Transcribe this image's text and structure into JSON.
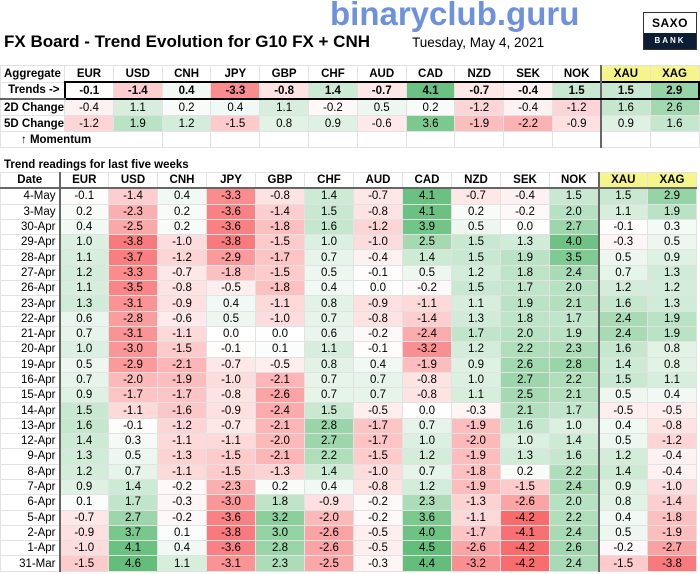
{
  "header": {
    "title": "FX Board - Trend Evolution for G10 FX + CNH",
    "date": "Tuesday, May 4, 2021",
    "logo_top": "SAXO",
    "logo_bottom": "BANK"
  },
  "colors": {
    "negative_max": "#f8696b",
    "positive_max": "#63be7b",
    "neutral": "#ffffff",
    "metals_header": "#f6f58a"
  },
  "currencies": [
    "EUR",
    "USD",
    "CNH",
    "JPY",
    "GBP",
    "CHF",
    "AUD",
    "CAD",
    "NZD",
    "SEK",
    "NOK",
    "XAU",
    "XAG"
  ],
  "aggregate": {
    "header_label": "Aggregate",
    "rows": [
      {
        "label": "Trends ->",
        "values": [
          "-0.1",
          "-1.4",
          "0.4",
          "-3.3",
          "-0.8",
          "1.4",
          "-0.7",
          "4.1",
          "-0.7",
          "-0.4",
          "1.5",
          "1.5",
          "2.9"
        ]
      },
      {
        "label": "2D Change",
        "values": [
          "-0.4",
          "1.1",
          "0.2",
          "0.4",
          "1.1",
          "-0.2",
          "0.5",
          "0.2",
          "-1.2",
          "-0.4",
          "-1.2",
          "1.6",
          "2.6"
        ]
      },
      {
        "label": "5D Change",
        "values": [
          "-1.2",
          "1.9",
          "1.2",
          "-1.5",
          "0.8",
          "0.9",
          "-0.6",
          "3.6",
          "-1.9",
          "-2.2",
          "-0.9",
          "0.9",
          "1.6"
        ]
      }
    ],
    "momentum_label": "↑ Momentum"
  },
  "history": {
    "section_title": "Trend readings for last five weeks",
    "date_header": "Date",
    "rows": [
      {
        "date": "4-May",
        "values": [
          "-0.1",
          "-1.4",
          "0.4",
          "-3.3",
          "-0.8",
          "1.4",
          "-0.7",
          "4.1",
          "-0.7",
          "-0.4",
          "1.5",
          "1.5",
          "2.9"
        ]
      },
      {
        "date": "3-May",
        "values": [
          "0.2",
          "-2.3",
          "0.2",
          "-3.6",
          "-1.4",
          "1.5",
          "-0.8",
          "4.1",
          "0.2",
          "-0.2",
          "2.0",
          "1.1",
          "1.9"
        ]
      },
      {
        "date": "30-Apr",
        "values": [
          "0.4",
          "-2.5",
          "0.2",
          "-3.6",
          "-1.8",
          "1.6",
          "-1.2",
          "3.9",
          "0.5",
          "0.0",
          "2.7",
          "-0.1",
          "0.3"
        ]
      },
      {
        "date": "29-Apr",
        "values": [
          "1.0",
          "-3.8",
          "-1.0",
          "-3.8",
          "-1.5",
          "1.0",
          "-1.0",
          "2.5",
          "1.5",
          "1.3",
          "4.0",
          "-0.3",
          "0.5"
        ]
      },
      {
        "date": "28-Apr",
        "values": [
          "1.1",
          "-3.7",
          "-1.2",
          "-2.9",
          "-1.7",
          "0.7",
          "-0.4",
          "1.4",
          "1.5",
          "1.9",
          "3.5",
          "0.5",
          "0.9"
        ]
      },
      {
        "date": "27-Apr",
        "values": [
          "1.2",
          "-3.3",
          "-0.7",
          "-1.8",
          "-1.5",
          "0.5",
          "-0.1",
          "0.5",
          "1.2",
          "1.8",
          "2.4",
          "0.7",
          "1.3"
        ]
      },
      {
        "date": "26-Apr",
        "values": [
          "1.1",
          "-3.5",
          "-0.8",
          "-0.5",
          "-1.8",
          "0.4",
          "0.0",
          "-0.2",
          "1.5",
          "1.7",
          "2.0",
          "1.2",
          "1.2"
        ]
      },
      {
        "date": "23-Apr",
        "values": [
          "1.3",
          "-3.1",
          "-0.9",
          "0.4",
          "-1.1",
          "0.8",
          "-0.9",
          "-1.1",
          "1.1",
          "1.9",
          "2.1",
          "1.6",
          "1.3"
        ]
      },
      {
        "date": "22-Apr",
        "values": [
          "0.6",
          "-2.8",
          "-0.6",
          "0.5",
          "-1.0",
          "0.7",
          "-0.8",
          "-1.4",
          "1.3",
          "1.8",
          "1.7",
          "2.4",
          "1.9"
        ]
      },
      {
        "date": "21-Apr",
        "values": [
          "0.7",
          "-3.1",
          "-1.1",
          "0.0",
          "0.0",
          "0.6",
          "-0.2",
          "-2.4",
          "1.7",
          "2.0",
          "1.9",
          "2.4",
          "1.9"
        ]
      },
      {
        "date": "20-Apr",
        "values": [
          "1.0",
          "-3.0",
          "-1.5",
          "-0.1",
          "0.1",
          "1.1",
          "-0.1",
          "-3.2",
          "1.2",
          "2.2",
          "2.3",
          "1.6",
          "0.8"
        ]
      },
      {
        "date": "19-Apr",
        "values": [
          "0.5",
          "-2.9",
          "-2.1",
          "-0.7",
          "-0.5",
          "0.8",
          "0.4",
          "-1.9",
          "0.9",
          "2.6",
          "2.8",
          "1.4",
          "0.8"
        ]
      },
      {
        "date": "16-Apr",
        "values": [
          "0.7",
          "-2.0",
          "-1.9",
          "-1.0",
          "-2.1",
          "0.7",
          "0.7",
          "-0.8",
          "1.0",
          "2.7",
          "2.2",
          "1.5",
          "1.1"
        ]
      },
      {
        "date": "15-Apr",
        "values": [
          "0.9",
          "-1.7",
          "-1.7",
          "-0.8",
          "-2.6",
          "0.7",
          "0.7",
          "-0.8",
          "1.1",
          "2.5",
          "2.1",
          "0.5",
          "0.4"
        ]
      },
      {
        "date": "14-Apr",
        "values": [
          "1.5",
          "-1.1",
          "-1.6",
          "-0.9",
          "-2.4",
          "1.5",
          "-0.5",
          "0.0",
          "-0.3",
          "2.1",
          "1.7",
          "-0.5",
          "-0.5"
        ]
      },
      {
        "date": "13-Apr",
        "values": [
          "1.6",
          "-0.1",
          "-1.2",
          "-0.7",
          "-2.1",
          "2.8",
          "-1.7",
          "0.7",
          "-1.9",
          "1.6",
          "1.0",
          "0.4",
          "-0.8"
        ]
      },
      {
        "date": "12-Apr",
        "values": [
          "1.4",
          "0.3",
          "-1.1",
          "-1.1",
          "-2.0",
          "2.7",
          "-1.7",
          "1.0",
          "-2.0",
          "1.0",
          "1.4",
          "0.5",
          "-1.2"
        ]
      },
      {
        "date": "9-Apr",
        "values": [
          "1.3",
          "0.5",
          "-1.3",
          "-1.5",
          "-2.1",
          "2.2",
          "-1.5",
          "1.2",
          "-1.9",
          "1.3",
          "1.6",
          "1.2",
          "-0.4"
        ]
      },
      {
        "date": "8-Apr",
        "values": [
          "1.2",
          "0.7",
          "-1.1",
          "-1.5",
          "-1.3",
          "1.4",
          "-1.0",
          "0.7",
          "-1.8",
          "0.2",
          "2.2",
          "1.4",
          "-0.4"
        ]
      },
      {
        "date": "7-Apr",
        "values": [
          "0.9",
          "1.4",
          "-0.2",
          "-2.3",
          "0.2",
          "0.4",
          "-0.8",
          "1.2",
          "-1.9",
          "-1.5",
          "2.4",
          "0.9",
          "-1.0"
        ]
      },
      {
        "date": "6-Apr",
        "values": [
          "0.1",
          "1.7",
          "-0.3",
          "-3.0",
          "1.8",
          "-0.9",
          "-0.2",
          "2.3",
          "-1.3",
          "-2.6",
          "2.0",
          "0.8",
          "-1.4"
        ]
      },
      {
        "date": "5-Apr",
        "values": [
          "-0.7",
          "2.7",
          "-0.2",
          "-3.6",
          "3.2",
          "-2.0",
          "-0.2",
          "3.6",
          "-1.1",
          "-4.2",
          "2.2",
          "0.4",
          "-1.8"
        ]
      },
      {
        "date": "2-Apr",
        "values": [
          "-0.9",
          "3.7",
          "0.1",
          "-3.8",
          "3.0",
          "-2.6",
          "-0.5",
          "4.0",
          "-1.7",
          "-4.1",
          "2.4",
          "0.5",
          "-1.9"
        ]
      },
      {
        "date": "1-Apr",
        "values": [
          "-1.0",
          "4.1",
          "0.4",
          "-3.6",
          "2.8",
          "-2.6",
          "-0.5",
          "4.5",
          "-2.6",
          "-4.2",
          "2.6",
          "-0.2",
          "-2.7"
        ]
      },
      {
        "date": "31-Mar",
        "values": [
          "-1.5",
          "4.6",
          "1.1",
          "-3.1",
          "2.3",
          "-2.5",
          "-0.3",
          "4.4",
          "-3.2",
          "-4.2",
          "2.4",
          "-1.5",
          "-3.8"
        ]
      }
    ]
  },
  "watermark": "binaryclub.guru"
}
